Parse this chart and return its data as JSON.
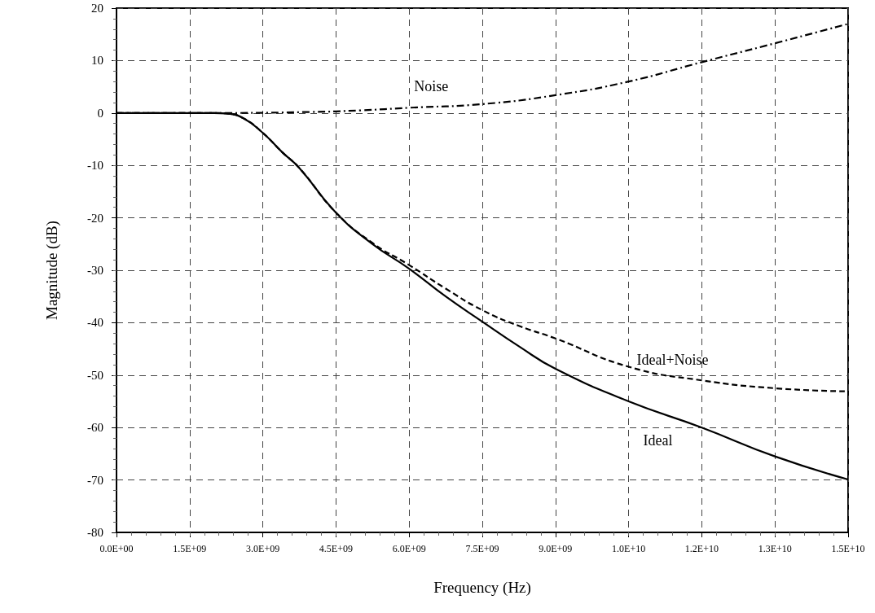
{
  "chart_data": {
    "type": "line",
    "xlabel": "Frequency (Hz)",
    "ylabel": "Magnitude (dB)",
    "xlim": [
      0,
      15000000000
    ],
    "ylim": [
      -80,
      20
    ],
    "xticks": [
      {
        "value": 0,
        "label": "0.0E+00"
      },
      {
        "value": 1500000000,
        "label": "1.5E+09"
      },
      {
        "value": 3000000000,
        "label": "3.0E+09"
      },
      {
        "value": 4500000000,
        "label": "4.5E+09"
      },
      {
        "value": 6000000000,
        "label": "6.0E+09"
      },
      {
        "value": 7500000000,
        "label": "7.5E+09"
      },
      {
        "value": 9000000000,
        "label": "9.0E+09"
      },
      {
        "value": 10500000000,
        "label": "1.0E+10"
      },
      {
        "value": 12000000000,
        "label": "1.2E+10"
      },
      {
        "value": 13500000000,
        "label": "1.3E+10"
      },
      {
        "value": 15000000000,
        "label": "1.5E+10"
      }
    ],
    "yticks": [
      -80,
      -70,
      -60,
      -50,
      -40,
      -30,
      -20,
      -10,
      0,
      10,
      20
    ],
    "grid": true,
    "marker": "none",
    "series": [
      {
        "name": "Noise",
        "color": "#000000",
        "line_style": "dashdot",
        "x": [
          0,
          2000000000,
          4000000000,
          5000000000,
          6000000000,
          7500000000,
          9000000000,
          10500000000,
          12000000000,
          13500000000,
          15000000000
        ],
        "values": [
          0,
          0,
          0.2,
          0.5,
          1,
          1.7,
          3.4,
          6,
          9.7,
          13.3,
          17
        ]
      },
      {
        "name": "Ideal+Noise",
        "color": "#000000",
        "line_style": "dashed",
        "x": [
          0,
          2000000000,
          2250000000,
          2600000000,
          3000000000,
          3400000000,
          3750000000,
          4500000000,
          5250000000,
          6000000000,
          6750000000,
          7500000000,
          8250000000,
          9000000000,
          10500000000,
          12000000000,
          13500000000,
          15000000000
        ],
        "values": [
          0,
          0,
          -0.1,
          -1,
          -3.8,
          -7.5,
          -10.5,
          -19,
          -24.8,
          -29,
          -33.5,
          -37.6,
          -40.6,
          -43,
          -48.4,
          -51,
          -52.5,
          -53.1
        ]
      },
      {
        "name": "Ideal",
        "color": "#000000",
        "line_style": "solid",
        "x": [
          0,
          2000000000,
          2250000000,
          2600000000,
          3000000000,
          3400000000,
          3750000000,
          4500000000,
          5250000000,
          6000000000,
          6750000000,
          7500000000,
          8250000000,
          9000000000,
          10500000000,
          12000000000,
          13500000000,
          15000000000
        ],
        "values": [
          0,
          0,
          -0.1,
          -1,
          -3.8,
          -7.5,
          -10.5,
          -19,
          -25,
          -29.7,
          -35,
          -39.8,
          -44.5,
          -48.8,
          -55,
          -60,
          -65.5,
          -69.9
        ]
      }
    ]
  }
}
